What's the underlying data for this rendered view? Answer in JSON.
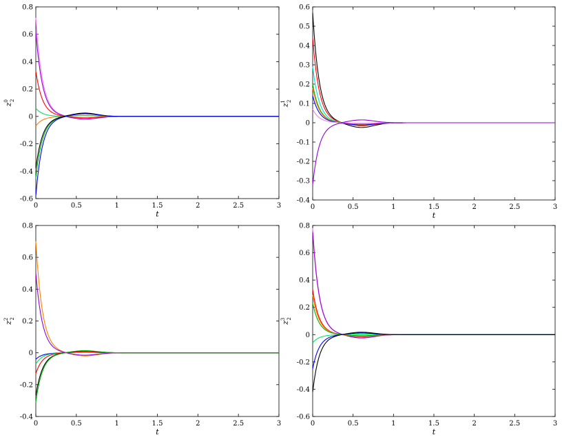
{
  "chart_data": [
    {
      "type": "line",
      "xlabel": "t",
      "ylabel": {
        "base": "z",
        "sup": "0",
        "sub": "2"
      },
      "xlim": [
        0,
        3
      ],
      "ylim": [
        -0.6,
        0.8
      ],
      "xticks": [
        0,
        0.5,
        1,
        1.5,
        2,
        2.5,
        3
      ],
      "yticks": [
        -0.6,
        -0.4,
        -0.2,
        0,
        0.2,
        0.4,
        0.6,
        0.8
      ],
      "xtick_labels": [
        "0",
        "0.5",
        "1",
        "1.5",
        "2",
        "2.5",
        "3"
      ],
      "ytick_labels": [
        "-0.6",
        "-0.4",
        "-0.2",
        "0",
        "0.2",
        "0.4",
        "0.6",
        "0.8"
      ],
      "series": [
        {
          "color": "#ee82ee",
          "y0": 0.72,
          "peak": -0.015
        },
        {
          "color": "#9400d3",
          "y0": 0.62,
          "peak": -0.02
        },
        {
          "color": "#ff0000",
          "y0": 0.33,
          "peak": -0.01
        },
        {
          "color": "#00e060",
          "y0": 0.06,
          "peak": 0.005
        },
        {
          "color": "#ff7f00",
          "y0": -0.07,
          "peak": 0.008
        },
        {
          "color": "#00b000",
          "y0": -0.45,
          "peak": 0.02
        },
        {
          "color": "#000000",
          "y0": -0.38,
          "peak": 0.025
        },
        {
          "color": "#0000ff",
          "y0": -0.58,
          "peak": 0.02
        }
      ]
    },
    {
      "type": "line",
      "xlabel": "t",
      "ylabel": {
        "base": "z",
        "sup": "1",
        "sub": "2"
      },
      "xlim": [
        0,
        3
      ],
      "ylim": [
        -0.4,
        0.6
      ],
      "xticks": [
        0,
        0.5,
        1,
        1.5,
        2,
        2.5,
        3
      ],
      "yticks": [
        -0.4,
        -0.3,
        -0.2,
        -0.1,
        0,
        0.1,
        0.2,
        0.3,
        0.4,
        0.5,
        0.6
      ],
      "xtick_labels": [
        "0",
        "0.5",
        "1",
        "1.5",
        "2",
        "2.5",
        "3"
      ],
      "ytick_labels": [
        "-0.4",
        "-0.3",
        "-0.2",
        "-0.1",
        "0",
        "0.1",
        "0.2",
        "0.3",
        "0.4",
        "0.5",
        "0.6"
      ],
      "series": [
        {
          "color": "#000000",
          "y0": 0.57,
          "peak": -0.025
        },
        {
          "color": "#ff0000",
          "y0": 0.44,
          "peak": -0.015
        },
        {
          "color": "#00e0c0",
          "y0": 0.29,
          "peak": -0.01
        },
        {
          "color": "#00b000",
          "y0": 0.2,
          "peak": -0.005
        },
        {
          "color": "#ff7f00",
          "y0": 0.18,
          "peak": -0.008
        },
        {
          "color": "#0000ff",
          "y0": 0.14,
          "peak": -0.012
        },
        {
          "color": "#ee82ee",
          "y0": 0.07,
          "peak": -0.003
        },
        {
          "color": "#9400d3",
          "y0": -0.32,
          "peak": 0.015
        }
      ]
    },
    {
      "type": "line",
      "xlabel": "t",
      "ylabel": {
        "base": "z",
        "sup": "2",
        "sub": "2"
      },
      "xlim": [
        0,
        3
      ],
      "ylim": [
        -0.4,
        0.8
      ],
      "xticks": [
        0,
        0.5,
        1,
        1.5,
        2,
        2.5,
        3
      ],
      "yticks": [
        -0.4,
        -0.2,
        0,
        0.2,
        0.4,
        0.6,
        0.8
      ],
      "xtick_labels": [
        "0",
        "0.5",
        "1",
        "1.5",
        "2",
        "2.5",
        "3"
      ],
      "ytick_labels": [
        "-0.4",
        "-0.2",
        "0",
        "0.2",
        "0.4",
        "0.6",
        "0.8"
      ],
      "series": [
        {
          "color": "#ff7f00",
          "y0": 0.7,
          "peak": -0.02
        },
        {
          "color": "#9400d3",
          "y0": 0.5,
          "peak": -0.015
        },
        {
          "color": "#0000ff",
          "y0": -0.04,
          "peak": 0.004
        },
        {
          "color": "#00e060",
          "y0": -0.07,
          "peak": 0.004
        },
        {
          "color": "#ff0000",
          "y0": -0.13,
          "peak": 0.006
        },
        {
          "color": "#000000",
          "y0": -0.27,
          "peak": 0.012
        },
        {
          "color": "#00b000",
          "y0": -0.31,
          "peak": 0.014
        }
      ]
    },
    {
      "type": "line",
      "xlabel": "t",
      "ylabel": {
        "base": "z",
        "sup": "3",
        "sub": "2"
      },
      "xlim": [
        0,
        3
      ],
      "ylim": [
        -0.6,
        0.8
      ],
      "xticks": [
        0,
        0.5,
        1,
        1.5,
        2,
        2.5,
        3
      ],
      "yticks": [
        -0.6,
        -0.4,
        -0.2,
        0,
        0.2,
        0.4,
        0.6,
        0.8
      ],
      "xtick_labels": [
        "0",
        "0.5",
        "1",
        "1.5",
        "2",
        "2.5",
        "3"
      ],
      "ytick_labels": [
        "-0.6",
        "-0.4",
        "-0.2",
        "0",
        "0.2",
        "0.4",
        "0.6",
        "0.8"
      ],
      "series": [
        {
          "color": "#ee82ee",
          "y0": 0.78,
          "peak": -0.02
        },
        {
          "color": "#9400d3",
          "y0": 0.75,
          "peak": -0.025
        },
        {
          "color": "#ff0000",
          "y0": 0.33,
          "peak": -0.015
        },
        {
          "color": "#ff7f00",
          "y0": 0.29,
          "peak": -0.012
        },
        {
          "color": "#00b000",
          "y0": 0.23,
          "peak": -0.008
        },
        {
          "color": "#00e060",
          "y0": -0.06,
          "peak": 0.004
        },
        {
          "color": "#0000ff",
          "y0": -0.25,
          "peak": 0.012
        },
        {
          "color": "#000000",
          "y0": -0.42,
          "peak": 0.018
        }
      ]
    }
  ]
}
